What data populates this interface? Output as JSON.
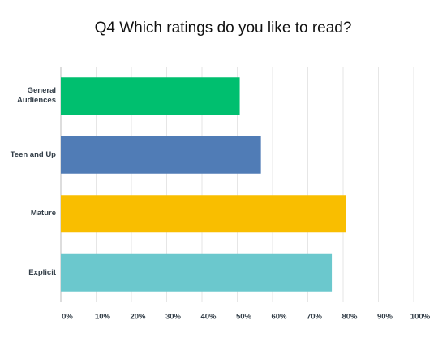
{
  "chart_data": {
    "type": "hbar",
    "title": "Q4 Which ratings do you like to read?",
    "categories": [
      "General Audiences",
      "Teen and Up",
      "Mature",
      "Explicit"
    ],
    "values": [
      50.7,
      56.7,
      80.7,
      76.8
    ],
    "colors": [
      "#00bf6f",
      "#507cb6",
      "#f9be00",
      "#6bc8cd"
    ],
    "xlim": [
      0,
      100
    ],
    "xticks": [
      {
        "value": 0,
        "label": "0%"
      },
      {
        "value": 10,
        "label": "10%"
      },
      {
        "value": 20,
        "label": "20%"
      },
      {
        "value": 30,
        "label": "30%"
      },
      {
        "value": 40,
        "label": "40%"
      },
      {
        "value": 50,
        "label": "50%"
      },
      {
        "value": 60,
        "label": "60%"
      },
      {
        "value": 70,
        "label": "70%"
      },
      {
        "value": 80,
        "label": "80%"
      },
      {
        "value": 90,
        "label": "90%"
      },
      {
        "value": 100,
        "label": "100%"
      }
    ],
    "grid": true
  }
}
